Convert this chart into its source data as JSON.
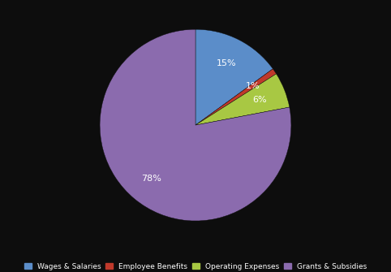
{
  "labels": [
    "Wages & Salaries",
    "Employee Benefits",
    "Operating Expenses",
    "Grants & Subsidies"
  ],
  "values": [
    15,
    1,
    6,
    78
  ],
  "colors": [
    "#5b8dc9",
    "#c0392b",
    "#a8c843",
    "#8b6bae"
  ],
  "startangle": 90,
  "background_color": "#0d0d0d",
  "text_color": "#ffffff",
  "legend_fontsize": 6.5,
  "figsize": [
    4.82,
    3.35
  ],
  "dpi": 100,
  "pctdistance": 0.72
}
